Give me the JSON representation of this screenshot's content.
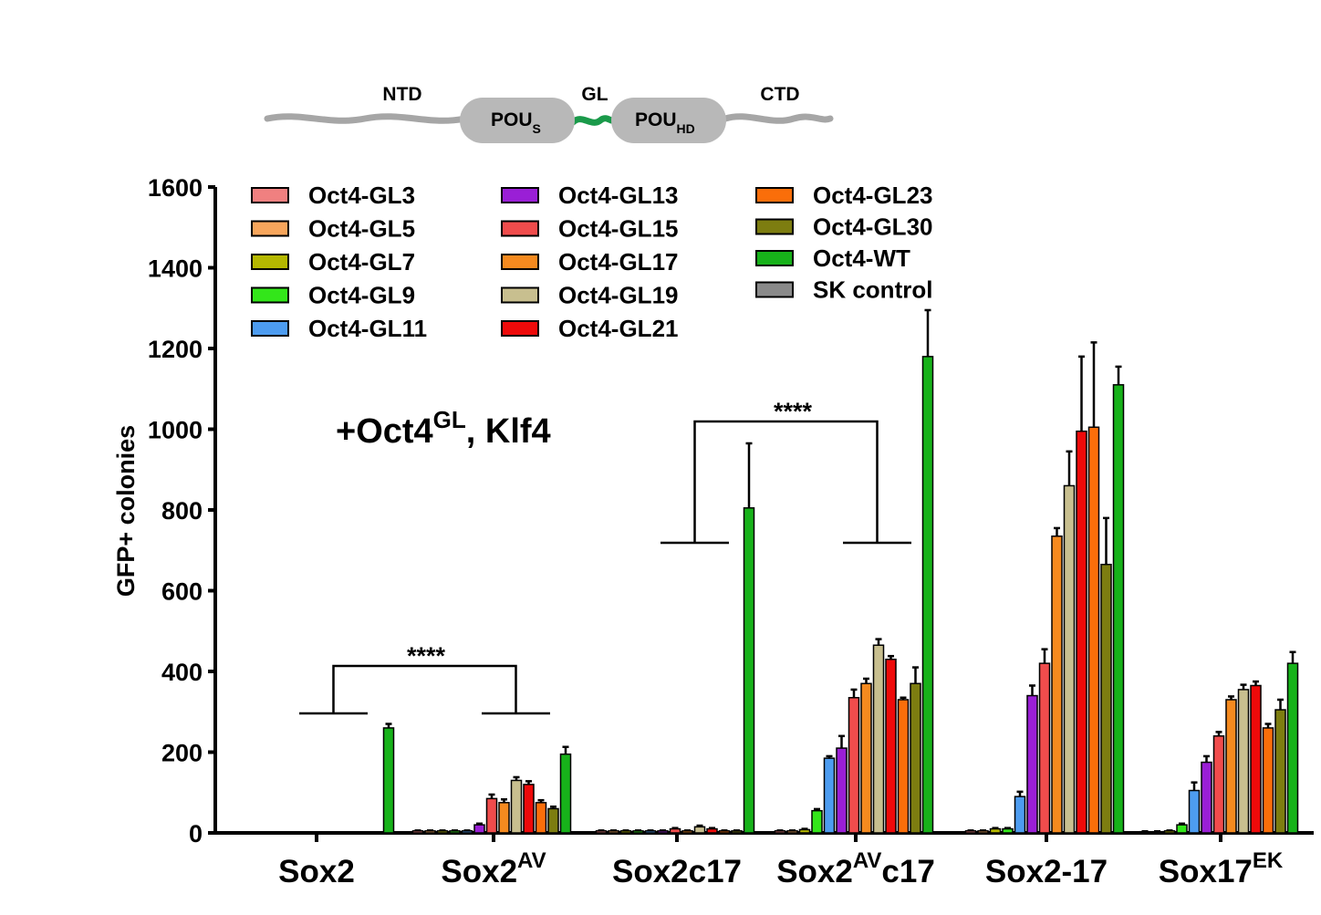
{
  "schematic": {
    "ntd": "NTD",
    "gl": "GL",
    "ctd": "CTD",
    "pou_s": {
      "main": "POU",
      "sub": "S"
    },
    "pou_hd": {
      "main": "POU",
      "sub": "HD"
    },
    "line_color": "#a6a6a6",
    "linker_color": "#1a9a4a"
  },
  "annotation": {
    "prefix": "+Oct4",
    "sup": "GL",
    "suffix": ", Klf4"
  },
  "significance": [
    {
      "label": "****",
      "left": "Sox2",
      "right": "Sox2AV"
    },
    {
      "label": "****",
      "left": "Sox2c17",
      "right": "Sox2AVc17"
    }
  ],
  "chart_data": {
    "type": "bar",
    "title": "",
    "xlabel": "",
    "ylabel": "GFP+ colonies",
    "ylim": [
      0,
      1600
    ],
    "yticks": [
      0,
      200,
      400,
      600,
      800,
      1000,
      1200,
      1400,
      1600
    ],
    "categories": [
      {
        "main": "Sox2",
        "sup": ""
      },
      {
        "main": "Sox2",
        "sup": "AV"
      },
      {
        "main": "Sox2c17",
        "sup": ""
      },
      {
        "main": "Sox2",
        "sup": "AV",
        "tail": "c17"
      },
      {
        "main": "Sox2-17",
        "sup": ""
      },
      {
        "main": "Sox17",
        "sup": "EK"
      }
    ],
    "series": [
      {
        "name": "Oct4-GL3",
        "color": "#f08080",
        "values": [
          0,
          5,
          5,
          5,
          5,
          3
        ],
        "errors": [
          0,
          1,
          1,
          1,
          1,
          1
        ]
      },
      {
        "name": "Oct4-GL5",
        "color": "#f7a65c",
        "values": [
          0,
          5,
          5,
          5,
          5,
          3
        ],
        "errors": [
          0,
          1,
          1,
          1,
          1,
          1
        ]
      },
      {
        "name": "Oct4-GL7",
        "color": "#b5b800",
        "values": [
          0,
          5,
          5,
          8,
          10,
          5
        ],
        "errors": [
          0,
          1,
          1,
          2,
          2,
          1
        ]
      },
      {
        "name": "Oct4-GL9",
        "color": "#33e61a",
        "values": [
          0,
          5,
          5,
          55,
          10,
          20
        ],
        "errors": [
          0,
          1,
          1,
          4,
          2,
          3
        ]
      },
      {
        "name": "Oct4-GL11",
        "color": "#4d9cf0",
        "values": [
          0,
          5,
          5,
          185,
          90,
          105
        ],
        "errors": [
          0,
          1,
          1,
          5,
          12,
          20
        ]
      },
      {
        "name": "Oct4-GL13",
        "color": "#9a1fd6",
        "values": [
          0,
          20,
          5,
          210,
          340,
          175
        ],
        "errors": [
          0,
          3,
          1,
          30,
          25,
          15
        ]
      },
      {
        "name": "Oct4-GL15",
        "color": "#f04c4c",
        "values": [
          0,
          85,
          10,
          335,
          420,
          240
        ],
        "errors": [
          0,
          10,
          2,
          20,
          35,
          10
        ]
      },
      {
        "name": "Oct4-GL17",
        "color": "#f58a1f",
        "values": [
          0,
          75,
          5,
          370,
          735,
          330
        ],
        "errors": [
          0,
          8,
          1,
          12,
          20,
          8
        ]
      },
      {
        "name": "Oct4-GL19",
        "color": "#c8bf8f",
        "values": [
          0,
          130,
          15,
          465,
          860,
          355
        ],
        "errors": [
          0,
          8,
          3,
          15,
          85,
          12
        ]
      },
      {
        "name": "Oct4-GL21",
        "color": "#ee0a0a",
        "values": [
          0,
          120,
          10,
          430,
          995,
          365
        ],
        "errors": [
          0,
          8,
          2,
          8,
          185,
          10
        ]
      },
      {
        "name": "Oct4-GL23",
        "color": "#fa6e0a",
        "values": [
          0,
          75,
          5,
          330,
          1005,
          260
        ],
        "errors": [
          0,
          6,
          1,
          5,
          210,
          10
        ]
      },
      {
        "name": "Oct4-GL30",
        "color": "#7d7d10",
        "values": [
          0,
          60,
          5,
          370,
          665,
          305
        ],
        "errors": [
          0,
          5,
          1,
          40,
          115,
          25
        ]
      },
      {
        "name": "Oct4-WT",
        "color": "#17b21a",
        "values": [
          260,
          195,
          805,
          1180,
          1110,
          420
        ],
        "errors": [
          10,
          18,
          160,
          115,
          45,
          28
        ]
      },
      {
        "name": "SK control",
        "color": "#8a8a8a",
        "values": [
          0,
          0,
          0,
          0,
          0,
          0
        ],
        "errors": [
          0,
          0,
          0,
          0,
          0,
          0
        ]
      }
    ],
    "legend_position": "top-left, three columns"
  }
}
